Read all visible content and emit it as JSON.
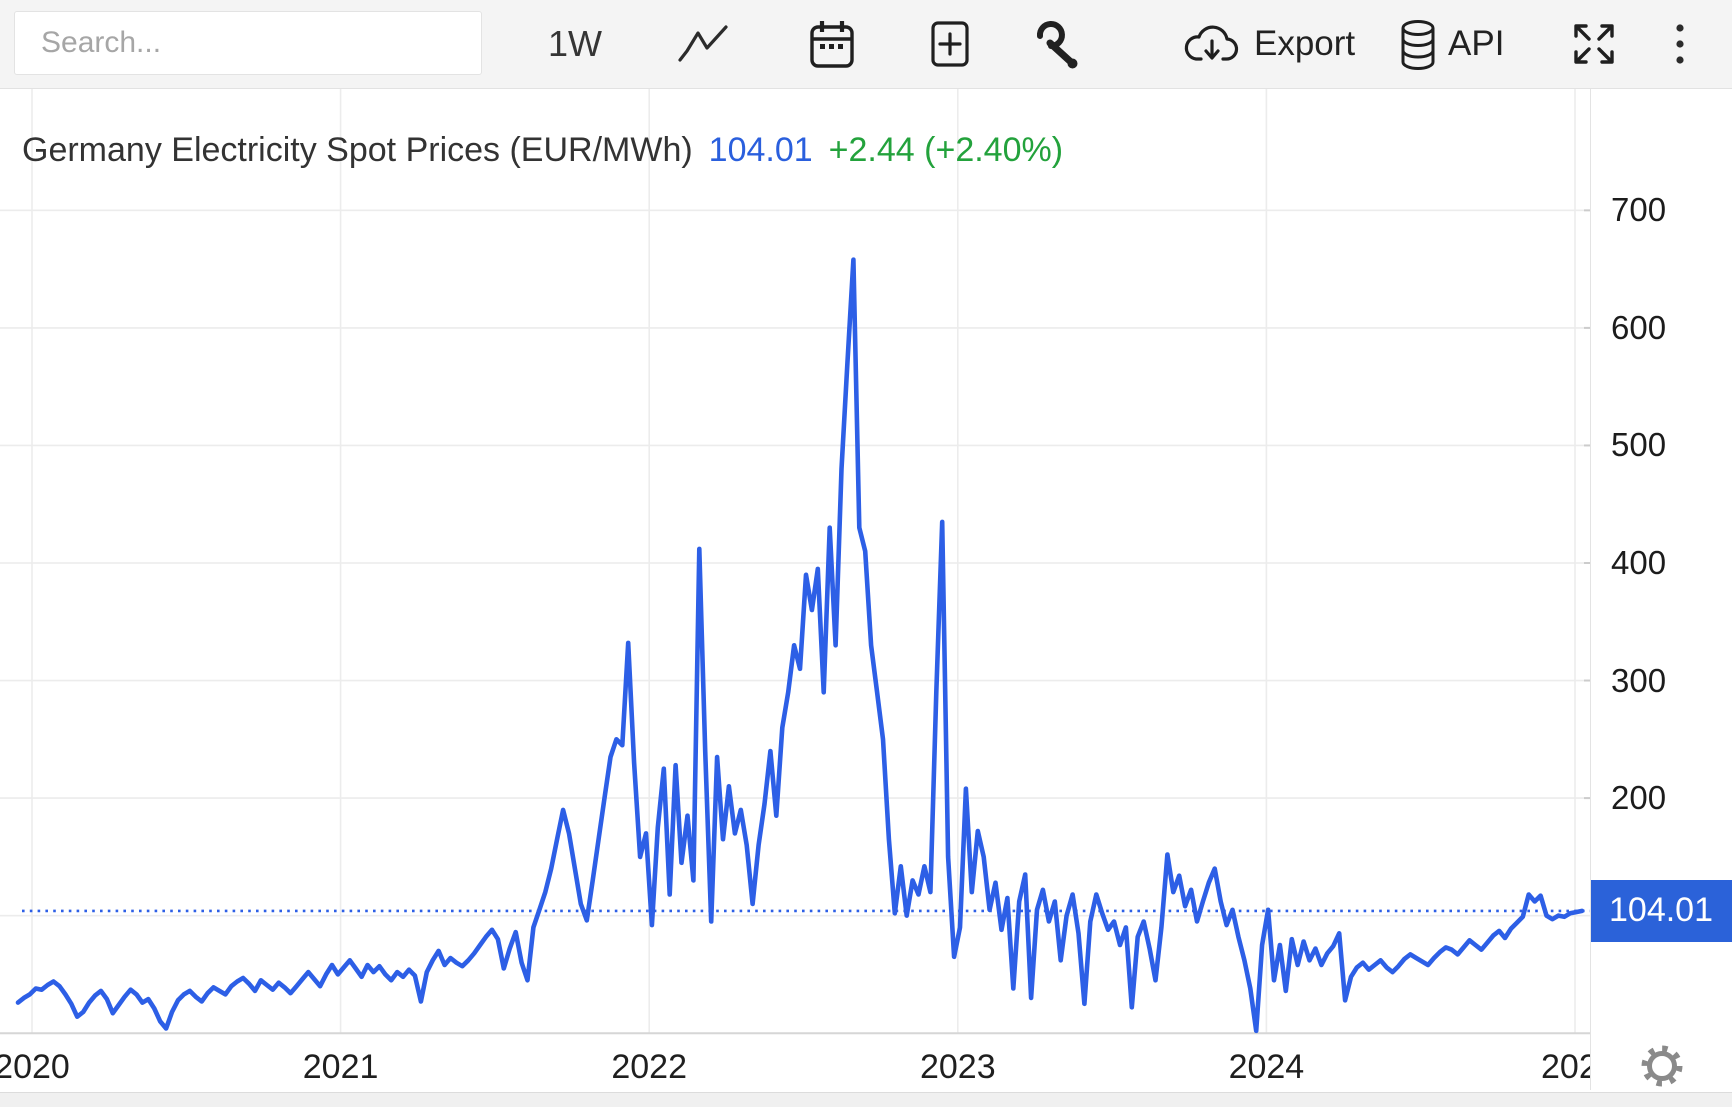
{
  "toolbar": {
    "search_placeholder": "Search...",
    "interval_label": "1W",
    "export_label": "Export",
    "api_label": "API"
  },
  "header": {
    "title": "Germany Electricity Spot Prices (EUR/MWh)",
    "value": "104.01",
    "change": "+2.44 (+2.40%)"
  },
  "y_axis": {
    "badge": "104.01"
  },
  "chart_data": {
    "type": "line",
    "title": "Germany Electricity Spot Prices (EUR/MWh)",
    "ylabel": "EUR/MWh",
    "frequency": "weekly",
    "x_range": "Dec 2019 - Jan 2025",
    "x_tick_labels": [
      "2020",
      "2021",
      "2022",
      "2023",
      "2024",
      "202"
    ],
    "y_ticks": [
      700,
      600,
      500,
      400,
      300,
      200
    ],
    "ylim": [
      0,
      800
    ],
    "grid": true,
    "line_color": "#2d5fe6",
    "badge_color": "#2b62d9",
    "current_value": 104.01,
    "current_value_line": "dotted",
    "change_value": 2.44,
    "change_percent": 2.4,
    "series": [
      {
        "name": "Germany Electricity Spot Price",
        "values": [
          26,
          30,
          33,
          38,
          37,
          41,
          44,
          40,
          33,
          25,
          14,
          18,
          26,
          32,
          36,
          29,
          17,
          24,
          31,
          37,
          33,
          26,
          29,
          21,
          10,
          4,
          18,
          28,
          33,
          36,
          31,
          27,
          34,
          39,
          36,
          33,
          40,
          44,
          47,
          42,
          36,
          45,
          41,
          37,
          43,
          39,
          34,
          40,
          46,
          52,
          46,
          40,
          50,
          58,
          50,
          56,
          62,
          55,
          48,
          58,
          52,
          57,
          50,
          45,
          52,
          48,
          54,
          49,
          27,
          52,
          62,
          70,
          58,
          64,
          60,
          57,
          62,
          68,
          75,
          82,
          88,
          80,
          55,
          72,
          86,
          60,
          45,
          90,
          105,
          120,
          140,
          165,
          190,
          170,
          140,
          110,
          96,
          130,
          165,
          200,
          235,
          250,
          245,
          332,
          230,
          150,
          170,
          92,
          175,
          225,
          118,
          228,
          145,
          185,
          130,
          412,
          240,
          95,
          235,
          165,
          210,
          170,
          190,
          160,
          110,
          160,
          195,
          240,
          185,
          260,
          290,
          330,
          310,
          390,
          360,
          395,
          290,
          430,
          330,
          480,
          570,
          658,
          430,
          410,
          330,
          290,
          250,
          165,
          102,
          142,
          100,
          130,
          118,
          142,
          120,
          290,
          435,
          150,
          65,
          90,
          208,
          120,
          172,
          150,
          105,
          128,
          88,
          115,
          38,
          112,
          135,
          30,
          105,
          122,
          95,
          112,
          62,
          100,
          118,
          85,
          25,
          95,
          118,
          102,
          88,
          95,
          75,
          90,
          22,
          82,
          95,
          72,
          45,
          90,
          152,
          120,
          134,
          108,
          122,
          95,
          112,
          128,
          140,
          112,
          92,
          105,
          82,
          62,
          38,
          2,
          75,
          105,
          45,
          75,
          36,
          80,
          58,
          78,
          62,
          72,
          58,
          68,
          74,
          85,
          28,
          48,
          56,
          60,
          54,
          58,
          62,
          56,
          52,
          57,
          63,
          67,
          64,
          61,
          58,
          64,
          69,
          73,
          71,
          67,
          73,
          79,
          75,
          71,
          77,
          83,
          87,
          81,
          89,
          94,
          99,
          118,
          112,
          117,
          100,
          97,
          100,
          99,
          102,
          103,
          104.01
        ]
      }
    ]
  }
}
